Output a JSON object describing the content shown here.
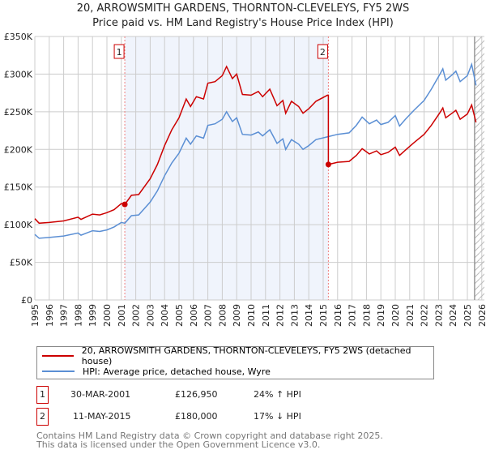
{
  "chart_data": {
    "type": "line",
    "title": "20, ARROWSMITH GARDENS, THORNTON-CLEVELEYS, FY5 2WS",
    "subtitle": "Price paid vs. HM Land Registry's House Price Index (HPI)",
    "xlim": [
      1995,
      2026
    ],
    "ylim": [
      0,
      350000
    ],
    "x_ticks": [
      "1995",
      "1996",
      "1997",
      "1998",
      "1999",
      "2000",
      "2001",
      "2002",
      "2003",
      "2004",
      "2005",
      "2006",
      "2007",
      "2008",
      "2009",
      "2010",
      "2011",
      "2012",
      "2013",
      "2014",
      "2015",
      "2016",
      "2017",
      "2018",
      "2019",
      "2020",
      "2021",
      "2022",
      "2023",
      "2024",
      "2025",
      "2026"
    ],
    "y_ticks": [
      {
        "v": 0,
        "label": "£0"
      },
      {
        "v": 50000,
        "label": "£50K"
      },
      {
        "v": 100000,
        "label": "£100K"
      },
      {
        "v": 150000,
        "label": "£150K"
      },
      {
        "v": 200000,
        "label": "£200K"
      },
      {
        "v": 250000,
        "label": "£250K"
      },
      {
        "v": 300000,
        "label": "£300K"
      },
      {
        "v": 350000,
        "label": "£350K"
      }
    ],
    "grid": true,
    "shaded_range": [
      2001.24,
      2015.36
    ],
    "forecast_hatch_from": 2025.5,
    "series": [
      {
        "name": "20, ARROWSMITH GARDENS, THORNTON-CLEVELEYS, FY5 2WS (detached house)",
        "color": "#cc0000",
        "x": [
          1995,
          1995.3,
          1996,
          1997,
          1998,
          1998.2,
          1999,
          1999.5,
          2000,
          2000.5,
          2001,
          2001.24,
          2001.24,
          2001.7,
          2002.2,
          2003,
          2003.5,
          2004,
          2004.5,
          2005,
          2005.5,
          2005.8,
          2006.2,
          2006.7,
          2007,
          2007.5,
          2008,
          2008.3,
          2008.7,
          2009,
          2009.4,
          2010,
          2010.5,
          2010.8,
          2011.3,
          2011.8,
          2012.2,
          2012.4,
          2012.8,
          2013.3,
          2013.6,
          2014,
          2014.5,
          2015.3,
          2015.36,
          2015.36,
          2016,
          2016.8,
          2017.3,
          2017.7,
          2018.2,
          2018.7,
          2019,
          2019.5,
          2020,
          2020.3,
          2020.7,
          2021.3,
          2022,
          2022.5,
          2023.1,
          2023.3,
          2023.5,
          2024,
          2024.2,
          2024.5,
          2025,
          2025.3,
          2025.6
        ],
        "y": [
          108000,
          102000,
          103000,
          105000,
          110000,
          107000,
          114000,
          113000,
          116000,
          120000,
          128000,
          126950,
          126950,
          139000,
          140000,
          161000,
          180000,
          205000,
          226000,
          242000,
          267000,
          257000,
          270000,
          267000,
          288000,
          290000,
          298000,
          310000,
          294000,
          300000,
          273000,
          272000,
          277000,
          270000,
          280000,
          258000,
          265000,
          248000,
          264000,
          257000,
          248000,
          254000,
          264000,
          272000,
          272000,
          180000,
          183000,
          184000,
          192000,
          201000,
          194000,
          198000,
          193000,
          196000,
          203000,
          192000,
          199000,
          209000,
          220000,
          232000,
          249000,
          255000,
          242000,
          249000,
          252000,
          240000,
          247000,
          259000,
          236000
        ]
      },
      {
        "name": "HPI: Average price, detached house, Wyre",
        "color": "#5b8fd4",
        "x": [
          1995,
          1995.3,
          1996,
          1997,
          1998,
          1998.2,
          1999,
          1999.5,
          2000,
          2000.5,
          2001,
          2001.24,
          2001.7,
          2002.2,
          2003,
          2003.5,
          2004,
          2004.5,
          2005,
          2005.5,
          2005.8,
          2006.2,
          2006.7,
          2007,
          2007.5,
          2008,
          2008.3,
          2008.7,
          2009,
          2009.4,
          2010,
          2010.5,
          2010.8,
          2011.3,
          2011.8,
          2012.2,
          2012.4,
          2012.8,
          2013.3,
          2013.6,
          2014,
          2014.5,
          2015.36,
          2016,
          2016.8,
          2017.3,
          2017.7,
          2018.2,
          2018.7,
          2019,
          2019.5,
          2020,
          2020.3,
          2020.7,
          2021.3,
          2022,
          2022.5,
          2023.1,
          2023.3,
          2023.5,
          2024,
          2024.2,
          2024.5,
          2025,
          2025.3,
          2025.6
        ],
        "y": [
          87000,
          82000,
          83000,
          85000,
          89000,
          86000,
          92000,
          91000,
          93000,
          97000,
          103000,
          102000,
          112000,
          113000,
          130000,
          145000,
          165000,
          182000,
          195000,
          215000,
          207000,
          218000,
          215000,
          232000,
          234000,
          240000,
          250000,
          237000,
          242000,
          220000,
          219000,
          223000,
          218000,
          226000,
          208000,
          214000,
          200000,
          213000,
          207000,
          200000,
          205000,
          213000,
          217000,
          220000,
          222000,
          232000,
          243000,
          234000,
          239000,
          233000,
          236000,
          245000,
          231000,
          240000,
          252000,
          265000,
          280000,
          300000,
          307000,
          292000,
          300000,
          304000,
          290000,
          298000,
          313000,
          285000
        ]
      }
    ],
    "markers": [
      {
        "label": "1",
        "x": 2001.24,
        "y": 126950
      },
      {
        "label": "2",
        "x": 2015.36,
        "y": 180000
      }
    ]
  },
  "legend": {
    "property": "20, ARROWSMITH GARDENS, THORNTON-CLEVELEYS, FY5 2WS (detached house)",
    "hpi": "HPI: Average price, detached house, Wyre"
  },
  "transactions": [
    {
      "num": "1",
      "date": "30-MAR-2001",
      "price": "£126,950",
      "hpi": "24% ↑ HPI"
    },
    {
      "num": "2",
      "date": "11-MAY-2015",
      "price": "£180,000",
      "hpi": "17% ↓ HPI"
    }
  ],
  "footer": {
    "line1": "Contains HM Land Registry data © Crown copyright and database right 2025.",
    "line2": "This data is licensed under the Open Government Licence v3.0."
  }
}
